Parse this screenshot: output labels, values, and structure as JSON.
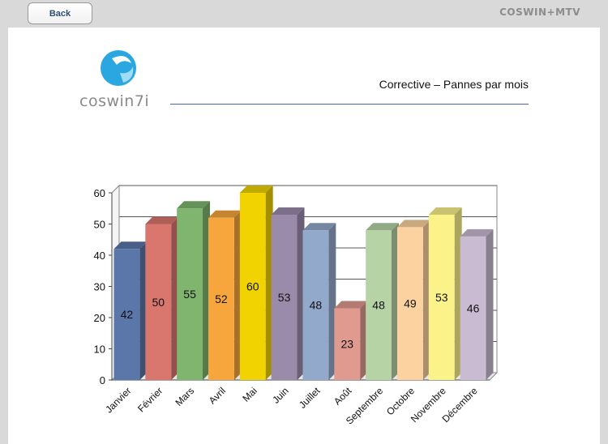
{
  "toolbar": {
    "back_label": "Back",
    "brand": "COSWIN+MTV"
  },
  "logo": {
    "text": "coswin7i"
  },
  "report": {
    "title": "Corrective – Pannes par mois"
  },
  "colors": {
    "bars": [
      "#5b76a8",
      "#d9776e",
      "#7fb56f",
      "#f6a63c",
      "#f0d300",
      "#9a8bab",
      "#93a9cb",
      "#e09a8f",
      "#b5d3a5",
      "#fcd2a0",
      "#fbf28a",
      "#c9bcd2"
    ],
    "axis": "#444444",
    "grid": "#555555"
  },
  "chart_data": {
    "type": "bar",
    "categories": [
      "Janvier",
      "Février",
      "Mars",
      "Avril",
      "Mai",
      "Juin",
      "Juillet",
      "Août",
      "Septembre",
      "Octobre",
      "Novembre",
      "Décembre"
    ],
    "values": [
      42,
      50,
      55,
      52,
      60,
      53,
      48,
      23,
      48,
      49,
      53,
      46
    ],
    "yticks": [
      0,
      10,
      20,
      30,
      40,
      50,
      60
    ],
    "ylim": [
      0,
      60
    ],
    "grid": true,
    "data_labels": true,
    "style": "3d-bar"
  }
}
